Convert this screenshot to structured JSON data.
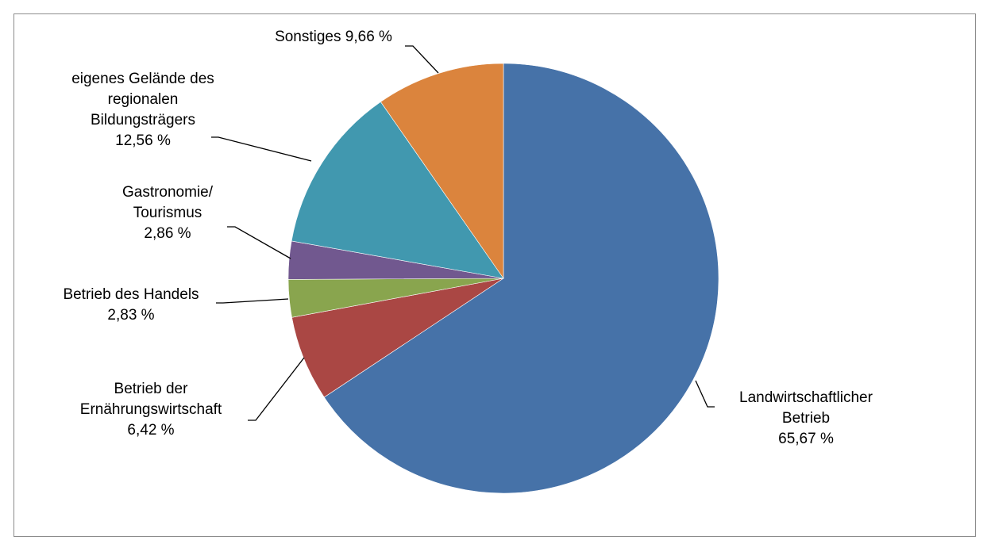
{
  "chart_data": {
    "type": "pie",
    "title": "",
    "slices": [
      {
        "label_lines": [
          "Landwirtschaftlicher",
          "Betrieb"
        ],
        "value_text": "65,67 %",
        "value": 65.67,
        "color": "#4672A8"
      },
      {
        "label_lines": [
          "Betrieb der",
          "Ernährungswirtschaft"
        ],
        "value_text": "6,42 %",
        "value": 6.42,
        "color": "#AA4744"
      },
      {
        "label_lines": [
          "Betrieb des Handels"
        ],
        "value_text": "2,83 %",
        "value": 2.83,
        "color": "#89A54E"
      },
      {
        "label_lines": [
          "Gastronomie/",
          "Tourismus"
        ],
        "value_text": "2,86 %",
        "value": 2.86,
        "color": "#71588F"
      },
      {
        "label_lines": [
          "eigenes Gelände des",
          "regionalen",
          "Bildungsträgers"
        ],
        "value_text": "12,56 %",
        "value": 12.56,
        "color": "#4198AF"
      },
      {
        "label_lines": [
          "Sonstiges 9,66 %"
        ],
        "value_text": "",
        "value": 9.66,
        "color": "#DB843D"
      }
    ]
  }
}
